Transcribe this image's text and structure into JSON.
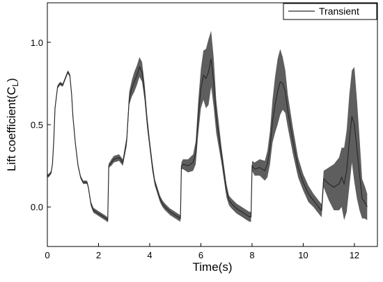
{
  "chart_data": {
    "type": "line",
    "title": "",
    "xlabel": "Time(s)",
    "ylabel_main": "Lift coefficient(C",
    "ylabel_sub": "L",
    "ylabel_close": ")",
    "xlim": [
      0,
      12.9
    ],
    "ylim": [
      -0.24,
      1.24
    ],
    "x_ticks": [
      0,
      2,
      4,
      6,
      8,
      10,
      12
    ],
    "x_tick_labels": [
      "0",
      "2",
      "4",
      "6",
      "8",
      "10",
      "12"
    ],
    "y_ticks": [
      0.0,
      0.5,
      1.0
    ],
    "y_tick_labels": [
      "0.0",
      "0.5",
      "1.0"
    ],
    "grid": false,
    "legend": {
      "position": "top-right",
      "entries": [
        "Transient"
      ]
    },
    "line_color": "#2a2a2a",
    "band_color": "#5e5e5e",
    "series": [
      {
        "name": "Transient",
        "x": [
          0.0,
          0.05,
          0.1,
          0.15,
          0.2,
          0.25,
          0.3,
          0.4,
          0.5,
          0.6,
          0.7,
          0.8,
          0.88,
          0.95,
          1.0,
          1.1,
          1.2,
          1.3,
          1.4,
          1.5,
          1.55,
          1.6,
          1.7,
          1.8,
          1.9,
          2.0,
          2.1,
          2.2,
          2.3,
          2.36,
          2.4,
          2.45,
          2.5,
          2.6,
          2.8,
          2.95,
          3.1,
          3.2,
          3.3,
          3.4,
          3.5,
          3.6,
          3.7,
          3.8,
          3.9,
          4.0,
          4.1,
          4.2,
          4.3,
          4.4,
          4.5,
          4.6,
          4.8,
          5.0,
          5.1,
          5.2,
          5.24,
          5.3,
          5.5,
          5.7,
          5.8,
          5.9,
          6.0,
          6.1,
          6.2,
          6.3,
          6.4,
          6.5,
          6.6,
          6.8,
          7.0,
          7.1,
          7.2,
          7.4,
          7.6,
          7.8,
          7.9,
          7.96,
          8.0,
          8.1,
          8.3,
          8.5,
          8.6,
          8.7,
          8.8,
          8.9,
          9.0,
          9.1,
          9.2,
          9.3,
          9.4,
          9.6,
          9.8,
          10.0,
          10.2,
          10.4,
          10.6,
          10.7,
          10.72,
          10.8,
          11.0,
          11.2,
          11.4,
          11.5,
          11.6,
          11.7,
          11.8,
          11.9,
          12.0,
          12.1,
          12.2,
          12.3,
          12.4,
          12.5
        ],
        "y": [
          0.19,
          0.19,
          0.2,
          0.21,
          0.26,
          0.4,
          0.6,
          0.73,
          0.75,
          0.74,
          0.78,
          0.82,
          0.8,
          0.68,
          0.55,
          0.38,
          0.25,
          0.18,
          0.15,
          0.15,
          0.15,
          0.12,
          0.02,
          -0.02,
          -0.03,
          -0.04,
          -0.05,
          -0.06,
          -0.07,
          -0.08,
          0.25,
          0.26,
          0.27,
          0.29,
          0.3,
          0.27,
          0.4,
          0.66,
          0.72,
          0.76,
          0.8,
          0.85,
          0.82,
          0.7,
          0.52,
          0.38,
          0.25,
          0.15,
          0.1,
          0.05,
          0.02,
          0.0,
          -0.03,
          -0.05,
          -0.06,
          -0.07,
          0.25,
          0.26,
          0.25,
          0.27,
          0.33,
          0.55,
          0.72,
          0.8,
          0.78,
          0.82,
          0.9,
          0.76,
          0.55,
          0.32,
          0.1,
          0.04,
          0.02,
          -0.01,
          -0.03,
          -0.05,
          -0.06,
          -0.06,
          0.25,
          0.23,
          0.24,
          0.22,
          0.26,
          0.36,
          0.52,
          0.62,
          0.7,
          0.76,
          0.75,
          0.7,
          0.58,
          0.4,
          0.24,
          0.15,
          0.08,
          0.04,
          0.0,
          -0.02,
          -0.02,
          0.17,
          0.14,
          0.12,
          0.14,
          0.18,
          0.14,
          0.22,
          0.4,
          0.55,
          0.5,
          0.35,
          0.2,
          0.05,
          0.03,
          0.0
        ],
        "band_half_width": [
          0.01,
          0.01,
          0.01,
          0.01,
          0.01,
          0.01,
          0.01,
          0.01,
          0.01,
          0.01,
          0.01,
          0.01,
          0.01,
          0.01,
          0.01,
          0.01,
          0.01,
          0.01,
          0.01,
          0.01,
          0.01,
          0.01,
          0.015,
          0.015,
          0.015,
          0.015,
          0.015,
          0.015,
          0.015,
          0.015,
          0.015,
          0.015,
          0.02,
          0.02,
          0.02,
          0.02,
          0.03,
          0.04,
          0.05,
          0.06,
          0.06,
          0.06,
          0.06,
          0.05,
          0.04,
          0.03,
          0.03,
          0.02,
          0.02,
          0.02,
          0.02,
          0.02,
          0.02,
          0.02,
          0.02,
          0.02,
          0.02,
          0.03,
          0.04,
          0.05,
          0.07,
          0.1,
          0.12,
          0.15,
          0.18,
          0.2,
          0.17,
          0.15,
          0.1,
          0.05,
          0.04,
          0.03,
          0.03,
          0.03,
          0.03,
          0.03,
          0.03,
          0.03,
          0.03,
          0.04,
          0.05,
          0.06,
          0.08,
          0.1,
          0.13,
          0.17,
          0.2,
          0.2,
          0.16,
          0.13,
          0.1,
          0.08,
          0.06,
          0.05,
          0.05,
          0.04,
          0.04,
          0.04,
          0.04,
          0.05,
          0.1,
          0.14,
          0.16,
          0.18,
          0.22,
          0.25,
          0.28,
          0.28,
          0.35,
          0.3,
          0.22,
          0.12,
          0.1,
          0.08
        ]
      }
    ]
  }
}
